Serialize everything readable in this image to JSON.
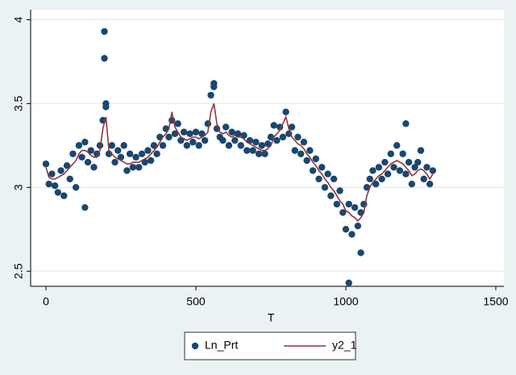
{
  "chart_data": {
    "type": "scatter_line",
    "x_label": "T",
    "xlim": [
      -51,
      1527
    ],
    "xticks": [
      0,
      500,
      1000,
      1500
    ],
    "ylim": [
      2.41,
      4.06
    ],
    "yticks": [
      2.5,
      3,
      3.5,
      4
    ],
    "grid": true,
    "legend": "bottom",
    "series": [
      {
        "name": "Ln_Prt",
        "kind": "scatter",
        "color": "#1a476f",
        "x": [
          0,
          10,
          20,
          30,
          40,
          50,
          60,
          70,
          80,
          90,
          100,
          110,
          120,
          130,
          140,
          150,
          160,
          170,
          180,
          190,
          200,
          210,
          220,
          230,
          240,
          250,
          260,
          270,
          280,
          290,
          300,
          310,
          320,
          330,
          340,
          350,
          360,
          370,
          380,
          390,
          400,
          410,
          420,
          430,
          440,
          450,
          460,
          470,
          480,
          490,
          500,
          510,
          520,
          530,
          540,
          550,
          560,
          570,
          580,
          590,
          600,
          610,
          620,
          630,
          640,
          650,
          660,
          670,
          680,
          690,
          700,
          710,
          720,
          730,
          740,
          750,
          760,
          770,
          780,
          790,
          800,
          810,
          820,
          830,
          840,
          850,
          860,
          870,
          880,
          890,
          900,
          910,
          920,
          930,
          940,
          950,
          960,
          970,
          980,
          990,
          1000,
          1010,
          1020,
          1030,
          1040,
          1050,
          1060,
          1070,
          1080,
          1090,
          1100,
          1110,
          1120,
          1130,
          1140,
          1150,
          1160,
          1170,
          1180,
          1190,
          1200,
          1210,
          1220,
          1230,
          1240,
          1250,
          1260,
          1270,
          1280,
          1290,
          195,
          195,
          1010,
          1050,
          130,
          200,
          560,
          1200
        ],
        "values": [
          3.14,
          3.02,
          3.08,
          3.01,
          2.97,
          3.1,
          2.95,
          3.13,
          3.05,
          3.2,
          3.0,
          3.25,
          3.18,
          3.27,
          3.15,
          3.22,
          3.12,
          3.2,
          3.25,
          3.4,
          3.48,
          3.2,
          3.25,
          3.15,
          3.22,
          3.18,
          3.25,
          3.1,
          3.2,
          3.12,
          3.18,
          3.12,
          3.2,
          3.15,
          3.22,
          3.16,
          3.25,
          3.2,
          3.3,
          3.25,
          3.35,
          3.3,
          3.4,
          3.32,
          3.38,
          3.28,
          3.33,
          3.25,
          3.32,
          3.27,
          3.33,
          3.25,
          3.32,
          3.28,
          3.38,
          3.55,
          3.6,
          3.35,
          3.3,
          3.28,
          3.36,
          3.25,
          3.33,
          3.28,
          3.32,
          3.25,
          3.31,
          3.22,
          3.28,
          3.22,
          3.27,
          3.2,
          3.25,
          3.2,
          3.26,
          3.3,
          3.37,
          3.28,
          3.36,
          3.3,
          3.45,
          3.32,
          3.36,
          3.22,
          3.3,
          3.2,
          3.27,
          3.16,
          3.22,
          3.1,
          3.17,
          3.05,
          3.12,
          3.0,
          3.08,
          2.95,
          3.05,
          2.9,
          2.98,
          2.85,
          2.75,
          2.9,
          2.72,
          2.88,
          2.77,
          2.85,
          2.9,
          3.0,
          3.05,
          3.1,
          3.02,
          3.12,
          3.05,
          3.15,
          3.08,
          3.2,
          3.12,
          3.25,
          3.1,
          3.2,
          3.08,
          3.15,
          3.02,
          3.12,
          3.15,
          3.22,
          3.05,
          3.12,
          3.02,
          3.1,
          3.93,
          3.77,
          2.43,
          2.61,
          2.88,
          3.5,
          3.62,
          3.38
        ]
      },
      {
        "name": "y2_1",
        "kind": "line",
        "color": "#90353b",
        "x": [
          0,
          10,
          20,
          30,
          40,
          50,
          60,
          70,
          80,
          90,
          100,
          110,
          120,
          130,
          140,
          150,
          160,
          170,
          180,
          190,
          200,
          210,
          220,
          230,
          240,
          250,
          260,
          270,
          280,
          290,
          300,
          310,
          320,
          330,
          340,
          350,
          360,
          370,
          380,
          390,
          400,
          410,
          420,
          430,
          440,
          450,
          460,
          470,
          480,
          490,
          500,
          510,
          520,
          530,
          540,
          550,
          560,
          570,
          580,
          590,
          600,
          610,
          620,
          630,
          640,
          650,
          660,
          670,
          680,
          690,
          700,
          710,
          720,
          730,
          740,
          750,
          760,
          770,
          780,
          790,
          800,
          810,
          820,
          830,
          840,
          850,
          860,
          870,
          880,
          890,
          900,
          910,
          920,
          930,
          940,
          950,
          960,
          970,
          980,
          990,
          1000,
          1010,
          1020,
          1030,
          1040,
          1050,
          1060,
          1070,
          1080,
          1090,
          1100,
          1110,
          1120,
          1130,
          1140,
          1150,
          1160,
          1170,
          1180,
          1190,
          1200,
          1210,
          1220,
          1230,
          1240,
          1250,
          1260,
          1270,
          1280,
          1290
        ],
        "values": [
          3.12,
          3.06,
          3.05,
          3.05,
          3.06,
          3.07,
          3.08,
          3.1,
          3.12,
          3.14,
          3.16,
          3.2,
          3.22,
          3.22,
          3.21,
          3.19,
          3.18,
          3.18,
          3.22,
          3.35,
          3.42,
          3.22,
          3.2,
          3.18,
          3.17,
          3.16,
          3.15,
          3.14,
          3.14,
          3.15,
          3.15,
          3.15,
          3.16,
          3.17,
          3.18,
          3.2,
          3.22,
          3.24,
          3.27,
          3.3,
          3.32,
          3.35,
          3.45,
          3.36,
          3.33,
          3.3,
          3.29,
          3.28,
          3.29,
          3.3,
          3.3,
          3.29,
          3.3,
          3.31,
          3.33,
          3.45,
          3.5,
          3.38,
          3.33,
          3.32,
          3.33,
          3.31,
          3.3,
          3.31,
          3.3,
          3.3,
          3.29,
          3.27,
          3.26,
          3.25,
          3.24,
          3.23,
          3.22,
          3.22,
          3.23,
          3.25,
          3.3,
          3.32,
          3.34,
          3.38,
          3.42,
          3.35,
          3.3,
          3.28,
          3.26,
          3.25,
          3.23,
          3.2,
          3.18,
          3.15,
          3.13,
          3.1,
          3.08,
          3.05,
          3.03,
          3.0,
          2.98,
          2.95,
          2.92,
          2.9,
          2.86,
          2.85,
          2.83,
          2.82,
          2.8,
          2.82,
          2.85,
          2.95,
          3.0,
          3.03,
          3.05,
          3.07,
          3.08,
          3.1,
          3.12,
          3.14,
          3.15,
          3.16,
          3.15,
          3.14,
          3.12,
          3.1,
          3.07,
          3.08,
          3.1,
          3.11,
          3.1,
          3.08,
          3.05,
          3.08
        ]
      }
    ]
  }
}
